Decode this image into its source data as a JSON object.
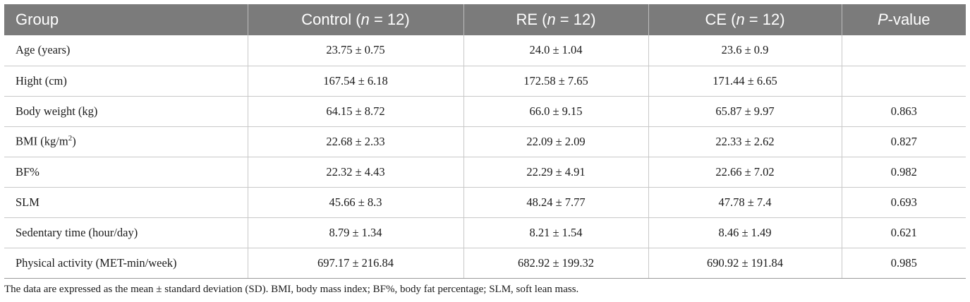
{
  "header": {
    "col0": "Group",
    "col1": {
      "pre": "Control (",
      "var": "n",
      "post": " = 12)"
    },
    "col2": {
      "pre": "RE (",
      "var": "n",
      "post": " = 12)"
    },
    "col3": {
      "pre": "CE (",
      "var": "n",
      "post": " = 12)"
    },
    "col4": {
      "var": "P",
      "post": "-value"
    }
  },
  "rows": [
    {
      "label": "Age (years)",
      "control": "23.75 ± 0.75",
      "re": "24.0 ± 1.04",
      "ce": "23.6 ± 0.9",
      "p": ""
    },
    {
      "label": "Hight (cm)",
      "control": "167.54 ± 6.18",
      "re": "172.58 ± 7.65",
      "ce": "171.44 ± 6.65",
      "p": ""
    },
    {
      "label": "Body weight (kg)",
      "control": "64.15 ± 8.72",
      "re": "66.0 ± 9.15",
      "ce": "65.87 ± 9.97",
      "p": "0.863"
    },
    {
      "label_pre": "BMI (kg/m",
      "label_sup": "2",
      "label_post": ")",
      "control": "22.68 ± 2.33",
      "re": "22.09 ± 2.09",
      "ce": "22.33 ± 2.62",
      "p": "0.827"
    },
    {
      "label": "BF%",
      "control": "22.32 ± 4.43",
      "re": "22.29 ± 4.91",
      "ce": "22.66 ± 7.02",
      "p": "0.982"
    },
    {
      "label": "SLM",
      "control": "45.66 ± 8.3",
      "re": "48.24 ± 7.77",
      "ce": "47.78 ± 7.4",
      "p": "0.693"
    },
    {
      "label": "Sedentary time (hour/day)",
      "control": "8.79 ± 1.34",
      "re": "8.21 ± 1.54",
      "ce": "8.46 ± 1.49",
      "p": "0.621"
    },
    {
      "label": "Physical activity (MET-min/week)",
      "control": "697.17 ± 216.84",
      "re": "682.92 ± 199.32",
      "ce": "690.92 ± 191.84",
      "p": "0.985"
    }
  ],
  "footnote": "The data are expressed as the mean ± standard deviation (SD). BMI, body mass index; BF%, body fat percentage; SLM, soft lean mass."
}
